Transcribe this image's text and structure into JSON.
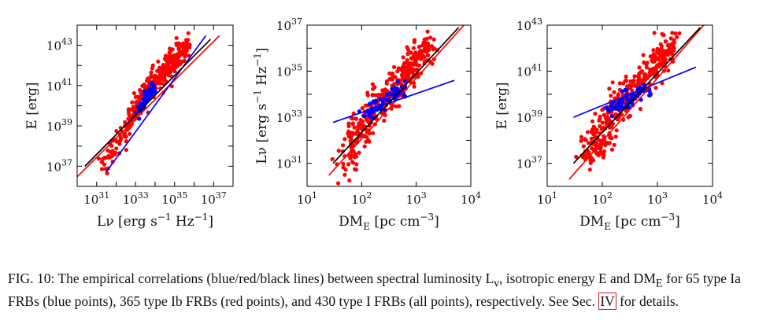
{
  "panels": [
    {
      "chart_data": {
        "type": "scatter",
        "xscale": "log",
        "yscale": "log",
        "xlim": [
          1e+30,
          1e+38
        ],
        "ylim": [
          1e+36,
          1e+44
        ],
        "xticks": [
          1e+31,
          1e+33,
          1e+35,
          1e+37
        ],
        "xticklabels": [
          "10^31",
          "10^33",
          "10^35",
          "10^37"
        ],
        "yticks": [
          1e+37,
          1e+39,
          1e+41,
          1e+43
        ],
        "yticklabels": [
          "10^37",
          "10^39",
          "10^41",
          "10^43"
        ],
        "xlabel": "L_ν [erg s^−1 Hz^−1]",
        "ylabel": "E [erg]",
        "series": [
          {
            "color": "#ff0000",
            "type": "points",
            "x": [
              2e+31,
              3e+32,
              8e+32,
              2e+33,
              5e+33,
              1e+34,
              3e+34,
              8e+34,
              2e+35,
              5e+35
            ],
            "y": [
              1e+37,
              3e+38,
              5e+39,
              2e+40,
              8e+40,
              2e+41,
              6e+41,
              1.5e+42,
              4e+42,
              1e+43
            ],
            "count": 365
          },
          {
            "color": "#0000ff",
            "type": "points",
            "x": [
              1e+33,
              2e+33,
              3e+33,
              4e+33,
              6e+33,
              8e+33
            ],
            "y": [
              4e+39,
              9e+39,
              2e+40,
              3e+40,
              5e+40,
              7e+40
            ],
            "count": 65
          },
          {
            "color": "#ff0000",
            "type": "line",
            "x": [
              1e+30,
              2e+37
            ],
            "y": [
              3e+36,
              3e+43
            ]
          },
          {
            "color": "#0000ff",
            "type": "line",
            "x": [
              3e+31,
              4e+36
            ],
            "y": [
              5e+36,
              3e+43
            ]
          },
          {
            "color": "#000000",
            "type": "line",
            "x": [
              2.5e+30,
              7e+36
            ],
            "y": [
              1e+37,
              2e+43
            ]
          }
        ]
      }
    },
    {
      "chart_data": {
        "type": "scatter",
        "xscale": "log",
        "yscale": "log",
        "xlim": [
          10,
          10000
        ],
        "ylim": [
          1e+30,
          1e+37
        ],
        "xticks": [
          10,
          100,
          1000,
          10000
        ],
        "xticklabels": [
          "10^1",
          "10^2",
          "10^3",
          "10^4"
        ],
        "yticks": [
          1e+31,
          1e+33,
          1e+35,
          1e+37
        ],
        "yticklabels": [
          "10^31",
          "10^33",
          "10^35",
          "10^37"
        ],
        "xlabel": "DM_E [pc cm^−3]",
        "ylabel": "L_ν [erg s^−1 Hz^−1]",
        "series": [
          {
            "color": "#ff0000",
            "type": "points",
            "x": [
              50,
              80,
              120,
              200,
              300,
              500,
              800,
              1200,
              2000
            ],
            "y": [
              1e+31,
              1e+32,
              5e+32,
              3e+33,
              1e+34,
              4e+34,
              1.5e+35,
              5e+35,
              2e+36
            ],
            "count": 365
          },
          {
            "color": "#0000ff",
            "type": "points",
            "x": [
              120,
              180,
              250,
              350,
              450,
              600
            ],
            "y": [
              1.5e+33,
              3e+33,
              5e+33,
              8e+33,
              1e+34,
              1.5e+34
            ],
            "count": 65
          },
          {
            "color": "#ff0000",
            "type": "line",
            "x": [
              25,
              8000
            ],
            "y": [
              3e+30,
              1.2e+37
            ]
          },
          {
            "color": "#0000ff",
            "type": "line",
            "x": [
              30,
              5000
            ],
            "y": [
              6e+32,
              4e+34
            ]
          },
          {
            "color": "#000000",
            "type": "line",
            "x": [
              30,
              6000
            ],
            "y": [
              1e+31,
              8e+36
            ]
          }
        ]
      }
    },
    {
      "chart_data": {
        "type": "scatter",
        "xscale": "log",
        "yscale": "log",
        "xlim": [
          10,
          10000
        ],
        "ylim": [
          1e+36,
          1e+43
        ],
        "xticks": [
          10,
          100,
          1000,
          10000
        ],
        "xticklabels": [
          "10^1",
          "10^2",
          "10^3",
          "10^4"
        ],
        "yticks": [
          1e+37,
          1e+39,
          1e+41,
          1e+43
        ],
        "yticklabels": [
          "10^37",
          "10^39",
          "10^41",
          "10^43"
        ],
        "xlabel": "DM_E [pc cm^−3]",
        "ylabel": "E [erg]",
        "series": [
          {
            "color": "#ff0000",
            "type": "points",
            "x": [
              50,
              80,
              120,
              200,
              300,
              500,
              800,
              1200,
              2000
            ],
            "y": [
              1e+37,
              1e+38,
              5e+38,
              3e+39,
              1e+40,
              4e+40,
              1.5e+41,
              5e+41,
              2e+42
            ],
            "count": 365
          },
          {
            "color": "#0000ff",
            "type": "points",
            "x": [
              120,
              180,
              250,
              350,
              450,
              600
            ],
            "y": [
              1.5e+39,
              3e+39,
              5e+39,
              8e+39,
              1e+40,
              1.5e+40
            ],
            "count": 65
          },
          {
            "color": "#ff0000",
            "type": "line",
            "x": [
              25,
              8000
            ],
            "y": [
              2e+36,
              1.5e+43
            ]
          },
          {
            "color": "#0000ff",
            "type": "line",
            "x": [
              30,
              5000
            ],
            "y": [
              1e+39,
              1.5e+41
            ]
          },
          {
            "color": "#000000",
            "type": "line",
            "x": [
              30,
              6000
            ],
            "y": [
              1e+37,
              8e+42
            ]
          }
        ]
      }
    }
  ],
  "caption": {
    "label": "FIG. 10:",
    "text_before": "The empirical correlations (blue/red/black lines) between spectral luminosity L",
    "nu": "ν",
    "text_mid1": ", isotropic energy E and DM",
    "sub_E": "E",
    "text_mid2": " for 65 type Ia FRBs (blue points), 365 type Ib FRBs (red points), and 430 type I FRBs (all points), respectively. See Sec. ",
    "ref": "IV",
    "text_after": " for details."
  },
  "colors": {
    "red": "#ff0000",
    "blue": "#0000ff",
    "black": "#000000",
    "ref_box": "#e0141c"
  }
}
